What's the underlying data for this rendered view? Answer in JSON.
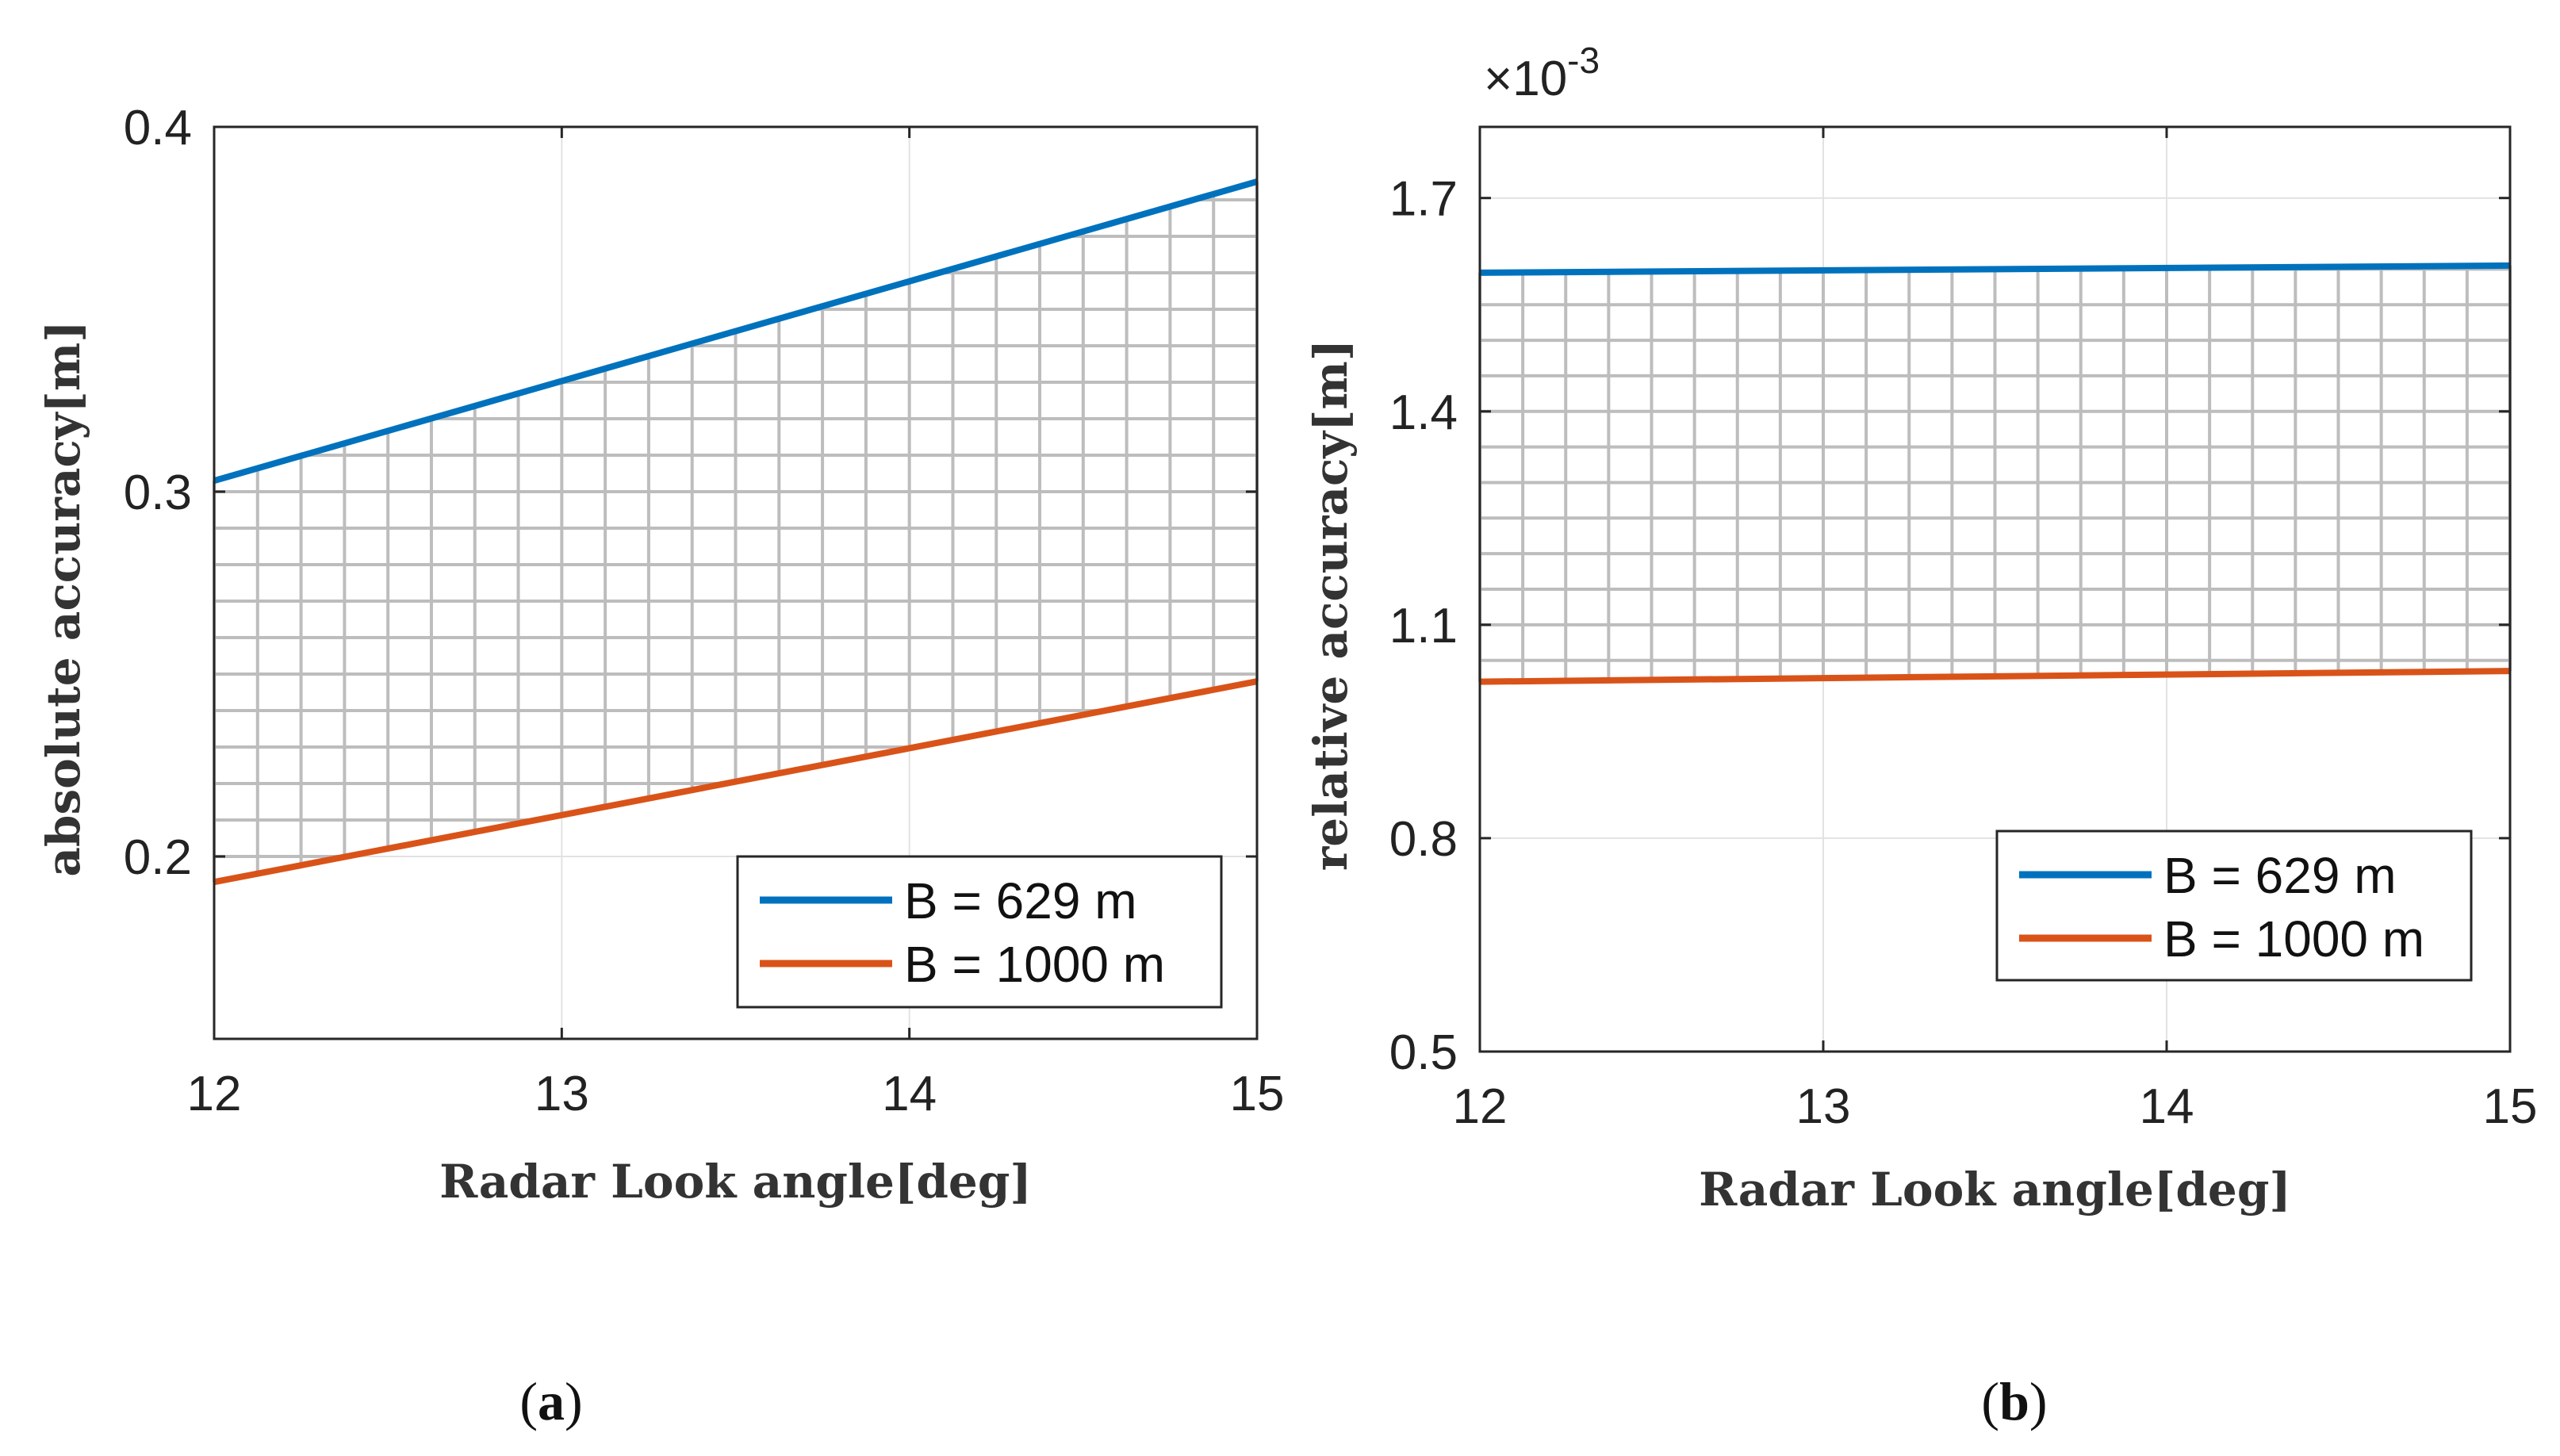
{
  "chart_data": [
    {
      "type": "line",
      "panel_label": "a",
      "title": "",
      "xlabel": "Radar Look angle[deg]",
      "ylabel": "absolute accuracy[m]",
      "xlim": [
        12,
        15
      ],
      "ylim": [
        0.15,
        0.4
      ],
      "xticks": [
        12,
        13,
        14,
        15
      ],
      "xtick_labels": [
        "12",
        "13",
        "14",
        "15"
      ],
      "yticks": [
        0.2,
        0.3,
        0.4
      ],
      "ytick_labels": [
        "0.2",
        "0.3",
        "0.4"
      ],
      "exponent_label": "",
      "grid": true,
      "hatch_between_series": true,
      "hatch_x_step": 0.125,
      "hatch_y_step": 0.01,
      "legend_position": "bottom-right",
      "series": [
        {
          "name": "B = 629 m",
          "color": "#0072BD",
          "x": [
            12,
            15
          ],
          "values": [
            0.303,
            0.385
          ]
        },
        {
          "name": "B = 1000 m",
          "color": "#D95319",
          "x": [
            12,
            15
          ],
          "values": [
            0.193,
            0.248
          ]
        }
      ]
    },
    {
      "type": "line",
      "panel_label": "b",
      "title": "",
      "xlabel": "Radar Look angle[deg]",
      "ylabel": "relative accuracy[m]",
      "xlim": [
        12,
        15
      ],
      "ylim": [
        0.5,
        1.8
      ],
      "xticks": [
        12,
        13,
        14,
        15
      ],
      "xtick_labels": [
        "12",
        "13",
        "14",
        "15"
      ],
      "yticks": [
        0.5,
        0.8,
        1.1,
        1.4,
        1.7
      ],
      "ytick_labels": [
        "0.5",
        "0.8",
        "1.1",
        "1.4",
        "1.7"
      ],
      "exponent_label": "×10",
      "exponent_power": "-3",
      "grid": true,
      "hatch_between_series": true,
      "hatch_x_step": 0.125,
      "hatch_y_step": 0.05,
      "legend_position": "bottom-right",
      "series": [
        {
          "name": "B = 629 m",
          "color": "#0072BD",
          "x": [
            12,
            15
          ],
          "values": [
            1.595,
            1.605
          ]
        },
        {
          "name": "B = 1000 m",
          "color": "#D95319",
          "x": [
            12,
            15
          ],
          "values": [
            1.02,
            1.035
          ]
        }
      ]
    }
  ]
}
